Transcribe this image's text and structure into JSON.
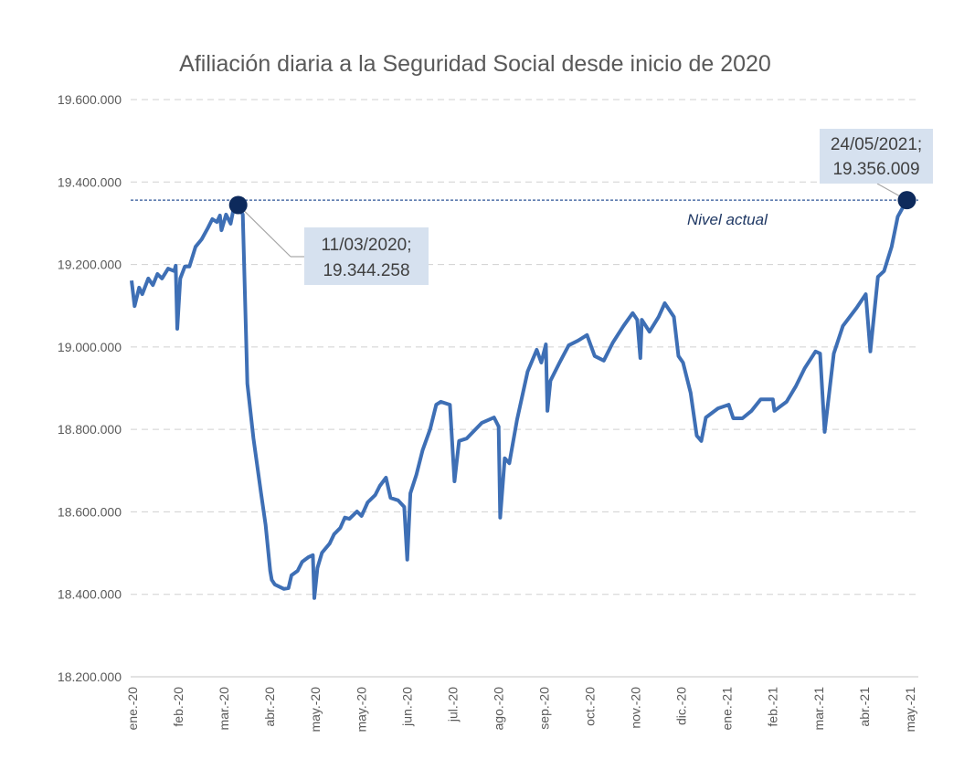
{
  "chart_data": {
    "type": "line",
    "title": "Afiliación diaria a la Seguridad Social desde inicio de 2020",
    "xlabel": "",
    "ylabel": "",
    "ylim": [
      18200000,
      19600000
    ],
    "y_ticks": [
      "19.600.000",
      "19.400.000",
      "19.200.000",
      "19.000.000",
      "18.800.000",
      "18.600.000",
      "18.400.000",
      "18.200.000"
    ],
    "y_tick_values": [
      19600000,
      19400000,
      19200000,
      19000000,
      18800000,
      18600000,
      18400000,
      18200000
    ],
    "x_ticks": [
      "ene.-20",
      "feb.-20",
      "mar.-20",
      "abr.-20",
      "may.-20",
      "may.-20",
      "jun.-20",
      "jul.-20",
      "ago.-20",
      "sep.-20",
      "oct.-20",
      "nov.-20",
      "dic.-20",
      "ene.-21",
      "feb.-21",
      "mar.-21",
      "abr.-21",
      "may.-21"
    ],
    "grid": true,
    "legend": "none",
    "colors": {
      "line": "#3e6fb5",
      "marker": "#0d2a5c",
      "reference": "#2e5597",
      "callout_bg": "#d6e1ef"
    },
    "reference_line": {
      "value": 19356009,
      "label": "Nivel actual"
    },
    "annotations": [
      {
        "date": "2020-03-11",
        "value": 19344258,
        "label_line1": "11/03/2020;",
        "label_line2": "19.344.258"
      },
      {
        "date": "2021-05-24",
        "value": 19356009,
        "label_line1": "24/05/2021;",
        "label_line2": "19.356.009"
      }
    ],
    "series": [
      {
        "points": [
          [
            "2020-01-01",
            19161000
          ],
          [
            "2020-01-03",
            19099000
          ],
          [
            "2020-01-06",
            19144000
          ],
          [
            "2020-01-08",
            19128000
          ],
          [
            "2020-01-12",
            19166000
          ],
          [
            "2020-01-15",
            19150000
          ],
          [
            "2020-01-18",
            19177000
          ],
          [
            "2020-01-21",
            19166000
          ],
          [
            "2020-01-25",
            19190000
          ],
          [
            "2020-01-29",
            19184000
          ],
          [
            "2020-01-30",
            19197000
          ],
          [
            "2020-01-31",
            19044000
          ],
          [
            "2020-02-02",
            19166000
          ],
          [
            "2020-02-05",
            19195000
          ],
          [
            "2020-02-08",
            19195000
          ],
          [
            "2020-02-12",
            19243000
          ],
          [
            "2020-02-16",
            19261000
          ],
          [
            "2020-02-20",
            19288000
          ],
          [
            "2020-02-23",
            19310000
          ],
          [
            "2020-02-26",
            19303000
          ],
          [
            "2020-02-28",
            19319000
          ],
          [
            "2020-02-29",
            19283000
          ],
          [
            "2020-03-03",
            19321000
          ],
          [
            "2020-03-06",
            19299000
          ],
          [
            "2020-03-08",
            19336000
          ],
          [
            "2020-03-11",
            19344258
          ],
          [
            "2020-03-14",
            19321000
          ],
          [
            "2020-03-17",
            18911000
          ],
          [
            "2020-03-21",
            18778000
          ],
          [
            "2020-03-26",
            18645000
          ],
          [
            "2020-03-29",
            18568000
          ],
          [
            "2020-04-01",
            18457000
          ],
          [
            "2020-04-02",
            18435000
          ],
          [
            "2020-04-04",
            18424000
          ],
          [
            "2020-04-10",
            18413000
          ],
          [
            "2020-04-13",
            18415000
          ],
          [
            "2020-04-15",
            18446000
          ],
          [
            "2020-04-19",
            18457000
          ],
          [
            "2020-04-22",
            18479000
          ],
          [
            "2020-04-26",
            18490000
          ],
          [
            "2020-04-29",
            18495000
          ],
          [
            "2020-04-30",
            18391000
          ],
          [
            "2020-05-02",
            18464000
          ],
          [
            "2020-05-05",
            18501000
          ],
          [
            "2020-05-10",
            18523000
          ],
          [
            "2020-05-13",
            18546000
          ],
          [
            "2020-05-17",
            18561000
          ],
          [
            "2020-05-20",
            18586000
          ],
          [
            "2020-05-23",
            18583000
          ],
          [
            "2020-05-28",
            18601000
          ],
          [
            "2020-05-31",
            18590000
          ],
          [
            "2020-06-04",
            18623000
          ],
          [
            "2020-06-09",
            18641000
          ],
          [
            "2020-06-12",
            18663000
          ],
          [
            "2020-06-16",
            18683000
          ],
          [
            "2020-06-19",
            18634000
          ],
          [
            "2020-06-24",
            18628000
          ],
          [
            "2020-06-28",
            18612000
          ],
          [
            "2020-06-30",
            18484000
          ],
          [
            "2020-07-02",
            18645000
          ],
          [
            "2020-07-06",
            18690000
          ],
          [
            "2020-07-10",
            18749000
          ],
          [
            "2020-07-15",
            18800000
          ],
          [
            "2020-07-19",
            18860000
          ],
          [
            "2020-07-22",
            18867000
          ],
          [
            "2020-07-28",
            18860000
          ],
          [
            "2020-07-31",
            18674000
          ],
          [
            "2020-08-03",
            18772000
          ],
          [
            "2020-08-08",
            18778000
          ],
          [
            "2020-08-18",
            18816000
          ],
          [
            "2020-08-26",
            18829000
          ],
          [
            "2020-08-29",
            18807000
          ],
          [
            "2020-08-30",
            18586000
          ],
          [
            "2020-09-02",
            18730000
          ],
          [
            "2020-09-05",
            18718000
          ],
          [
            "2020-09-10",
            18823000
          ],
          [
            "2020-09-17",
            18940000
          ],
          [
            "2020-09-23",
            18993000
          ],
          [
            "2020-09-26",
            18962000
          ],
          [
            "2020-09-29",
            19006000
          ],
          [
            "2020-09-30",
            18845000
          ],
          [
            "2020-10-02",
            18918000
          ],
          [
            "2020-10-08",
            18962000
          ],
          [
            "2020-10-14",
            19004000
          ],
          [
            "2020-10-20",
            19015000
          ],
          [
            "2020-10-26",
            19029000
          ],
          [
            "2020-10-31",
            18978000
          ],
          [
            "2020-11-06",
            18967000
          ],
          [
            "2020-11-12",
            19011000
          ],
          [
            "2020-11-19",
            19051000
          ],
          [
            "2020-11-25",
            19082000
          ],
          [
            "2020-11-28",
            19066000
          ],
          [
            "2020-11-30",
            18973000
          ],
          [
            "2020-12-01",
            19066000
          ],
          [
            "2020-12-06",
            19037000
          ],
          [
            "2020-12-12",
            19073000
          ],
          [
            "2020-12-16",
            19106000
          ],
          [
            "2020-12-22",
            19073000
          ],
          [
            "2020-12-25",
            18978000
          ],
          [
            "2020-12-28",
            18962000
          ],
          [
            "2021-01-02",
            18889000
          ],
          [
            "2021-01-06",
            18785000
          ],
          [
            "2021-01-09",
            18772000
          ],
          [
            "2021-01-12",
            18829000
          ],
          [
            "2021-01-20",
            18851000
          ],
          [
            "2021-01-27",
            18860000
          ],
          [
            "2021-01-30",
            18827000
          ],
          [
            "2021-02-05",
            18827000
          ],
          [
            "2021-02-11",
            18845000
          ],
          [
            "2021-02-17",
            18873000
          ],
          [
            "2021-02-25",
            18873000
          ],
          [
            "2021-02-26",
            18845000
          ],
          [
            "2021-03-06",
            18867000
          ],
          [
            "2021-03-12",
            18904000
          ],
          [
            "2021-03-18",
            18949000
          ],
          [
            "2021-03-25",
            18989000
          ],
          [
            "2021-03-28",
            18984000
          ],
          [
            "2021-03-31",
            18794000
          ],
          [
            "2021-04-06",
            18984000
          ],
          [
            "2021-04-12",
            19051000
          ],
          [
            "2021-04-21",
            19095000
          ],
          [
            "2021-04-27",
            19128000
          ],
          [
            "2021-04-30",
            18989000
          ],
          [
            "2021-05-05",
            19170000
          ],
          [
            "2021-05-09",
            19184000
          ],
          [
            "2021-05-14",
            19243000
          ],
          [
            "2021-05-18",
            19316000
          ],
          [
            "2021-05-24",
            19356009
          ]
        ]
      }
    ]
  }
}
